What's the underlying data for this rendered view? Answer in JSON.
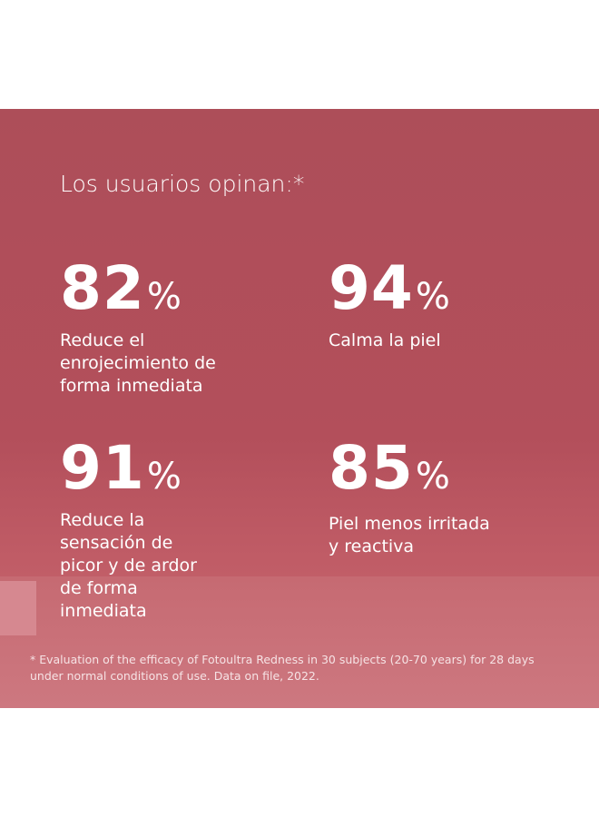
{
  "title": "Los usuarios opinan:*",
  "stats": [
    {
      "value": 82,
      "unit": "%",
      "lines": [
        "Reduce el",
        "enrojecimiento de",
        "forma inmediata"
      ]
    },
    {
      "value": 94,
      "unit": "%",
      "lines": [
        "Calma la piel"
      ]
    },
    {
      "value": 91,
      "unit": "%",
      "lines": [
        "Reduce la",
        "sensación de",
        "picor y de ardor",
        "de forma",
        "inmediata"
      ]
    },
    {
      "value": 85,
      "unit": "%",
      "lines": [
        "Piel menos irritada",
        "y reactiva"
      ]
    }
  ],
  "footnote": [
    "* Evaluation of the efficacy of Fotoultra Redness in 30 subjects (20-70 years) for 28 days",
    "under normal conditions of use. Data on file, 2022."
  ]
}
